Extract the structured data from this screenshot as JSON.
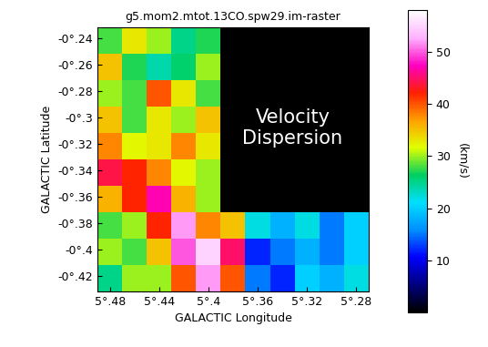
{
  "chart_data": {
    "type": "heatmap",
    "title": "g5.mom2.mtot.13CO.spw29.im-raster",
    "x_label": "GALACTIC Longitude",
    "y_label": "GALACTIC Latitude",
    "annotation": "Velocity\nDispersion",
    "xlim": [
      5.49,
      5.27
    ],
    "ylim": [
      -0.432,
      -0.232
    ],
    "xticks": [
      {
        "value": 5.48,
        "label": "5°.48"
      },
      {
        "value": 5.44,
        "label": "5°.44"
      },
      {
        "value": 5.4,
        "label": "5°.4"
      },
      {
        "value": 5.36,
        "label": "5°.36"
      },
      {
        "value": 5.32,
        "label": "5°.32"
      },
      {
        "value": 5.28,
        "label": "5°.28"
      }
    ],
    "yticks": [
      {
        "value": -0.24,
        "label": "-0°.24"
      },
      {
        "value": -0.26,
        "label": "-0°.26"
      },
      {
        "value": -0.28,
        "label": "-0°.28"
      },
      {
        "value": -0.3,
        "label": "-0°.3"
      },
      {
        "value": -0.32,
        "label": "-0°.32"
      },
      {
        "value": -0.34,
        "label": "-0°.34"
      },
      {
        "value": -0.36,
        "label": "-0°.36"
      },
      {
        "value": -0.38,
        "label": "-0°.38"
      },
      {
        "value": -0.4,
        "label": "-0°.4"
      },
      {
        "value": -0.42,
        "label": "-0°.42"
      }
    ],
    "cells": [
      [
        28,
        33,
        30,
        25,
        27,
        null,
        null,
        null,
        null,
        null,
        null
      ],
      [
        35,
        27,
        24,
        26,
        30,
        null,
        null,
        null,
        null,
        null,
        null
      ],
      [
        30,
        28,
        40,
        33,
        28,
        null,
        null,
        null,
        null,
        null,
        null
      ],
      [
        35,
        28,
        33,
        30,
        35,
        null,
        null,
        null,
        null,
        null,
        null
      ],
      [
        38,
        32,
        33,
        38,
        33,
        null,
        null,
        null,
        null,
        null,
        null
      ],
      [
        44,
        42,
        38,
        32,
        30,
        null,
        null,
        null,
        null,
        null,
        null
      ],
      [
        36,
        42,
        47,
        36,
        30,
        null,
        null,
        null,
        null,
        null,
        null
      ],
      [
        28,
        30,
        42,
        52,
        38,
        35,
        22,
        18,
        22,
        15,
        20
      ],
      [
        30,
        28,
        35,
        50,
        55,
        45,
        12,
        15,
        18,
        15,
        20
      ],
      [
        25,
        30,
        30,
        40,
        52,
        40,
        15,
        12,
        20,
        18,
        22
      ]
    ],
    "colorbar": {
      "range": [
        0,
        58
      ],
      "ticks": [
        10,
        20,
        30,
        40,
        50
      ],
      "label": "(km/s)"
    }
  }
}
